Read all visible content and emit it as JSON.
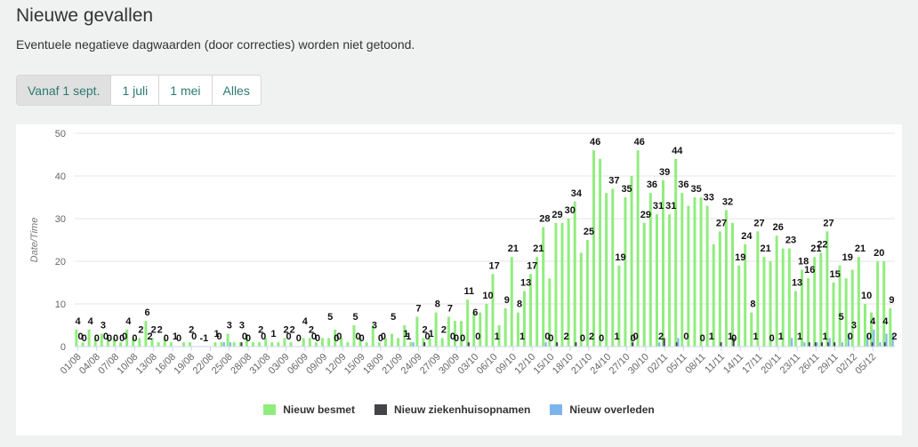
{
  "header": {
    "title": "Nieuwe gevallen",
    "subtitle": "Eventuele negatieve dagwaarden (door correcties) worden niet getoond."
  },
  "range_buttons": [
    {
      "label": "Vanaf 1 sept.",
      "active": true
    },
    {
      "label": "1 juli",
      "active": false
    },
    {
      "label": "1 mei",
      "active": false
    },
    {
      "label": "Alles",
      "active": false
    }
  ],
  "colors": {
    "besmet": "#90ed7d",
    "ziekenhuis": "#434348",
    "overleden": "#7cb5ec"
  },
  "chart_data": {
    "type": "bar",
    "ylabel": "Date/Time",
    "ylim": [
      0,
      50
    ],
    "yticks": [
      0,
      10,
      20,
      30,
      40,
      50
    ],
    "grid": true,
    "legend_position": "bottom-center",
    "x_tick_labels": [
      "01/08",
      "04/08",
      "07/08",
      "10/08",
      "13/08",
      "16/08",
      "19/08",
      "22/08",
      "25/08",
      "28/08",
      "31/08",
      "03/09",
      "06/09",
      "09/09",
      "12/09",
      "15/09",
      "18/09",
      "21/09",
      "24/09",
      "27/09",
      "30/09",
      "03/10",
      "06/10",
      "09/10",
      "12/10",
      "15/10",
      "18/10",
      "21/10",
      "24/10",
      "27/10",
      "30/10",
      "02/11",
      "05/11",
      "08/11",
      "11/11",
      "14/11",
      "17/11",
      "20/11",
      "23/11",
      "26/11",
      "29/11",
      "02/12",
      "05/12"
    ],
    "series": [
      {
        "name": "Nieuw besmet",
        "values": [
          4,
          1,
          4,
          2,
          3,
          2,
          2,
          1,
          4,
          2,
          2,
          6,
          2,
          1,
          2,
          1,
          0,
          1,
          1,
          0,
          0,
          0,
          1,
          1,
          3,
          1,
          1,
          3,
          1,
          1,
          2,
          1,
          1,
          2,
          1,
          0,
          2,
          2,
          1,
          2,
          2,
          4,
          2,
          1,
          5,
          2,
          1,
          5,
          1,
          2,
          3,
          2,
          5,
          1,
          7,
          2,
          2,
          8,
          2,
          7,
          6,
          6,
          11,
          8,
          8,
          10,
          17,
          5,
          9,
          21,
          8,
          13,
          17,
          21,
          28,
          16,
          29,
          29,
          30,
          34,
          22,
          25,
          46,
          44,
          36,
          37,
          19,
          35,
          40,
          46,
          29,
          36,
          31,
          39,
          31,
          44,
          36,
          33,
          35,
          35,
          33,
          24,
          27,
          32,
          29,
          19,
          24,
          8,
          27,
          21,
          20,
          26,
          23,
          23,
          13,
          18,
          16,
          21,
          22,
          27,
          15,
          19,
          16,
          18,
          21,
          10,
          8,
          20,
          20,
          9
        ],
        "labels": [
          4,
          0,
          4,
          0,
          3,
          0,
          0,
          0,
          4,
          0,
          2,
          6,
          2,
          2,
          0,
          null,
          0,
          null,
          2,
          null,
          -1,
          null,
          1,
          null,
          3,
          null,
          3,
          0,
          null,
          2,
          null,
          1,
          null,
          2,
          2,
          0,
          4,
          2,
          0,
          null,
          5,
          0,
          null,
          null,
          5,
          0,
          null,
          3,
          0,
          null,
          5,
          null,
          1,
          null,
          7,
          2,
          1,
          8,
          2,
          7,
          0,
          0,
          11,
          6,
          null,
          10,
          17,
          null,
          9,
          21,
          8,
          13,
          17,
          21,
          28,
          0,
          29,
          null,
          30,
          34,
          0,
          25,
          46,
          0,
          null,
          37,
          19,
          35,
          0,
          46,
          29,
          36,
          31,
          39,
          31,
          44,
          36,
          null,
          35,
          0,
          33,
          null,
          27,
          32,
          0,
          19,
          24,
          8,
          27,
          21,
          0,
          26,
          null,
          23,
          13,
          18,
          16,
          21,
          22,
          27,
          15,
          5,
          19,
          3,
          21,
          10,
          4,
          20,
          4,
          9
        ],
        "extra_labels": [
          0,
          0,
          0,
          2,
          1,
          0,
          0,
          0,
          0,
          0,
          0,
          0,
          0,
          0,
          1,
          0,
          0,
          0,
          1,
          1,
          0,
          2,
          2,
          1,
          0,
          2,
          0,
          1,
          1,
          1,
          1,
          1,
          1,
          0,
          0,
          2
        ]
      },
      {
        "name": "Nieuw ziekenhuisopnamen",
        "values": [
          0,
          0,
          0,
          0,
          0,
          0,
          0,
          0,
          0,
          0,
          0,
          0,
          0,
          0,
          0,
          0,
          0,
          0,
          0,
          0,
          0,
          0,
          0,
          0,
          0,
          0,
          1,
          0,
          0,
          0,
          0,
          0,
          0,
          0,
          0,
          0,
          0,
          0,
          0,
          0,
          0,
          0,
          0,
          0,
          0,
          0,
          0,
          0,
          0,
          0,
          0,
          0,
          0,
          0,
          0,
          1,
          0,
          0,
          0,
          0,
          0,
          0,
          1,
          0,
          0,
          0,
          0,
          0,
          0,
          0,
          0,
          0,
          0,
          0,
          0,
          0,
          1,
          0,
          0,
          1,
          0,
          0,
          0,
          0,
          0,
          0,
          0,
          0,
          1,
          0,
          0,
          0,
          0,
          2,
          0,
          1,
          0,
          0,
          0,
          0,
          0,
          0,
          1,
          0,
          2,
          0,
          0,
          0,
          0,
          0,
          0,
          0,
          0,
          0,
          0,
          0,
          1,
          1,
          1,
          1,
          1,
          0,
          0,
          0,
          0,
          0,
          1,
          0,
          1,
          0
        ]
      },
      {
        "name": "Nieuw overleden",
        "values": [
          0,
          0,
          0,
          0,
          0,
          0,
          0,
          0,
          0,
          0,
          0,
          0,
          0,
          0,
          0,
          0,
          0,
          0,
          0,
          0,
          0,
          0,
          0,
          1,
          1,
          0,
          0,
          0,
          0,
          0,
          0,
          0,
          0,
          0,
          0,
          0,
          0,
          0,
          0,
          0,
          0,
          0,
          0,
          0,
          0,
          0,
          0,
          0,
          0,
          0,
          0,
          0,
          0,
          1,
          0,
          0,
          0,
          0,
          0,
          0,
          0,
          0,
          0,
          0,
          0,
          0,
          0,
          0,
          0,
          0,
          0,
          0,
          0,
          0,
          1,
          0,
          0,
          0,
          0,
          0,
          0,
          0,
          0,
          0,
          0,
          0,
          0,
          0,
          0,
          0,
          0,
          0,
          1,
          0,
          0,
          2,
          0,
          0,
          0,
          0,
          0,
          0,
          0,
          0,
          0,
          0,
          0,
          0,
          0,
          0,
          0,
          0,
          0,
          2,
          0,
          1,
          0,
          1,
          0,
          2,
          0,
          1,
          3,
          0,
          0,
          3,
          4,
          1,
          3,
          3
        ]
      }
    ]
  }
}
